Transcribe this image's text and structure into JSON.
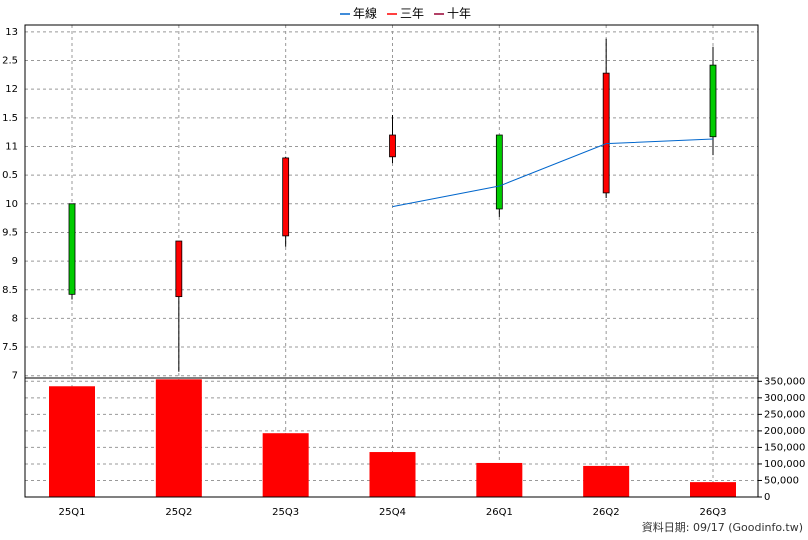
{
  "chart_data": [
    {
      "type": "candlestick",
      "open": [
        10.0,
        8.38,
        9.44,
        10.82,
        11.2,
        10.19,
        12.42
      ],
      "high": [
        10.0,
        9.35,
        10.82,
        11.55,
        11.2,
        12.88,
        12.74
      ],
      "low": [
        8.33,
        7.07,
        9.25,
        10.71,
        9.77,
        10.1,
        10.85
      ],
      "close": [
        8.42,
        9.35,
        10.8,
        11.2,
        9.91,
        12.28,
        11.17
      ],
      "up_color": "#ff0000",
      "down_color": "#00cc00",
      "series": [
        {
          "name": "年線",
          "color": "#0066cc",
          "values": [
            null,
            null,
            null,
            9.95,
            10.31,
            11.05,
            11.13
          ]
        },
        {
          "name": "三年",
          "color": "#ff0000",
          "values": [
            null,
            null,
            null,
            null,
            null,
            null,
            null
          ]
        },
        {
          "name": "十年",
          "color": "#990033",
          "values": [
            null,
            null,
            null,
            null,
            null,
            null,
            null
          ]
        }
      ],
      "ylim": [
        6.96,
        13.12
      ],
      "yticks": [
        13,
        {
          "value": 12.5,
          "label": "2.5"
        },
        12,
        {
          "value": 11.5,
          "label": "1.5"
        },
        11,
        {
          "value": 10.5,
          "label": "0.5"
        },
        10,
        9.5,
        9,
        8.5,
        8,
        7.5,
        7
      ],
      "grid": true
    },
    {
      "type": "bar",
      "categories": [
        "25Q1",
        "25Q2",
        "25Q3",
        "25Q4",
        "26Q1",
        "26Q2",
        "26Q3"
      ],
      "values": [
        335000,
        356000,
        193000,
        136000,
        103000,
        94000,
        45000
      ],
      "color": "#ff0000",
      "ylim": [
        0,
        360000
      ],
      "yticks": [
        {
          "value": 350000,
          "label": "350,000"
        },
        {
          "value": 300000,
          "label": "300,000"
        },
        {
          "value": 250000,
          "label": "250,000"
        },
        {
          "value": 200000,
          "label": "200,000"
        },
        {
          "value": 150000,
          "label": "150,000"
        },
        {
          "value": 100000,
          "label": "100,000"
        },
        {
          "value": 50000,
          "label": "50,000"
        },
        0
      ],
      "grid": true,
      "footnote": "資料日期: 09/17 (Goodinfo.tw)"
    }
  ]
}
